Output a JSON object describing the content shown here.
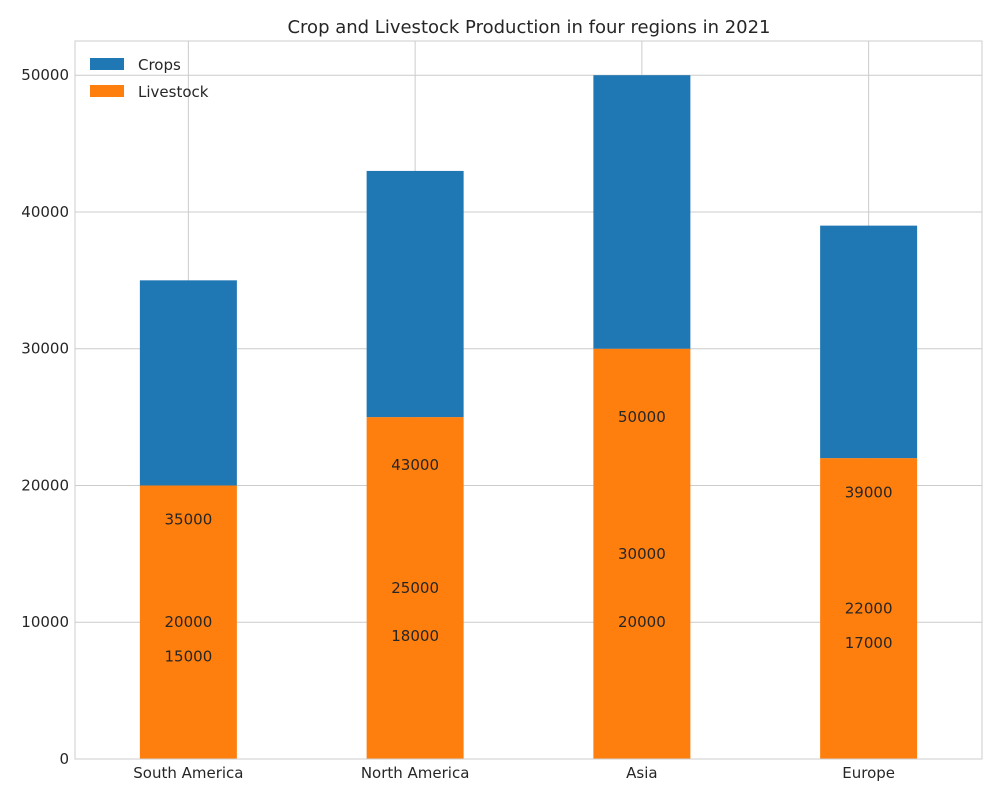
{
  "chart_data": {
    "type": "bar",
    "stacked": true,
    "title": "Crop and Livestock Production in four regions in 2021",
    "xlabel": "",
    "ylabel": "",
    "categories": [
      "South America",
      "North America",
      "Asia",
      "Europe"
    ],
    "ylim": [
      0,
      52500
    ],
    "yticks": [
      0,
      10000,
      20000,
      30000,
      40000,
      50000
    ],
    "grid": true,
    "legend_position": "top-left",
    "series": [
      {
        "name": "Livestock",
        "color": "#ff7f0e",
        "values": [
          20000,
          25000,
          30000,
          22000
        ]
      },
      {
        "name": "Crops",
        "color": "#1f77b4",
        "values": [
          15000,
          18000,
          20000,
          17000
        ]
      }
    ],
    "legend": [
      {
        "name": "Crops",
        "color": "#1f77b4"
      },
      {
        "name": "Livestock",
        "color": "#ff7f0e"
      }
    ],
    "annotations": [
      {
        "category": "South America",
        "value": 35000,
        "text": "35000"
      },
      {
        "category": "South America",
        "value": 20000,
        "text": "20000"
      },
      {
        "category": "South America",
        "value": 15000,
        "text": "15000"
      },
      {
        "category": "North America",
        "value": 43000,
        "text": "43000"
      },
      {
        "category": "North America",
        "value": 25000,
        "text": "25000"
      },
      {
        "category": "North America",
        "value": 18000,
        "text": "18000"
      },
      {
        "category": "Asia",
        "value": 50000,
        "text": "50000"
      },
      {
        "category": "Asia",
        "value": 30000,
        "text": "30000"
      },
      {
        "category": "Asia",
        "value": 20000,
        "text": "20000"
      },
      {
        "category": "Europe",
        "value": 39000,
        "text": "39000"
      },
      {
        "category": "Europe",
        "value": 22000,
        "text": "22000"
      },
      {
        "category": "Europe",
        "value": 17000,
        "text": "17000"
      }
    ],
    "colors": {
      "grid": "#cccccc",
      "axes_edge": "#cccccc",
      "text": "#262626"
    }
  }
}
